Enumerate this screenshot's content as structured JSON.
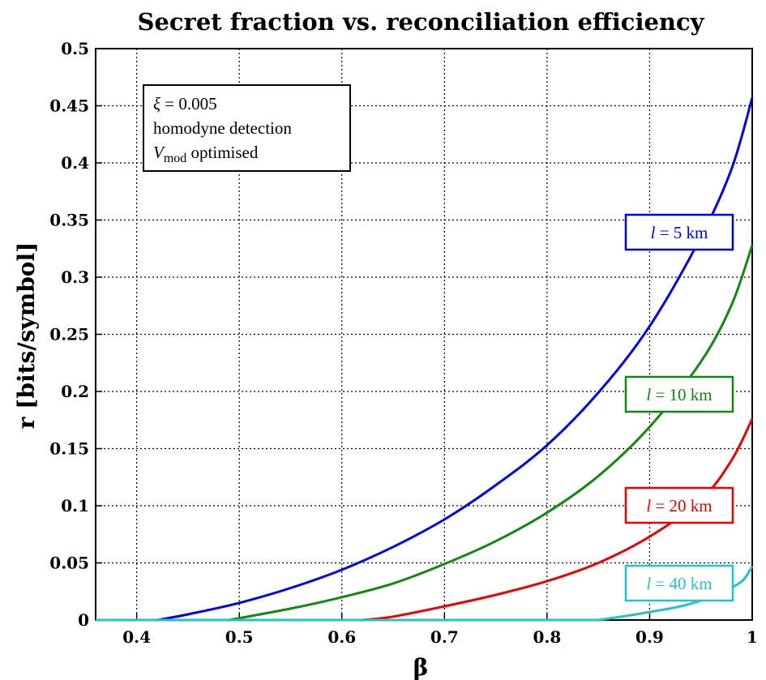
{
  "chart_data": {
    "type": "line",
    "title": "Secret fraction vs. reconciliation efficiency",
    "xlabel": "β",
    "ylabel": "r [bits/symbol]",
    "xlim": [
      0.36,
      1.0
    ],
    "ylim": [
      0,
      0.5
    ],
    "xticks": [
      0.4,
      0.5,
      0.6,
      0.7,
      0.8,
      0.9,
      1.0
    ],
    "xtick_labels": [
      "0.4",
      "0.5",
      "0.6",
      "0.7",
      "0.8",
      "0.9",
      "1"
    ],
    "yticks": [
      0,
      0.05,
      0.1,
      0.15,
      0.2,
      0.25,
      0.3,
      0.35,
      0.4,
      0.45,
      0.5
    ],
    "ytick_labels": [
      "0",
      "0.05",
      "0.1",
      "0.15",
      "0.2",
      "0.25",
      "0.3",
      "0.35",
      "0.4",
      "0.45",
      "0.5"
    ],
    "grid": true,
    "info_box": {
      "line1_symbol": "ξ",
      "line1_rest": " = 0.005",
      "line2": "homodyne detection",
      "line3_var": "V",
      "line3_sub": "mod",
      "line3_rest": " optimised"
    },
    "series": [
      {
        "name_var": "l",
        "name_rest": " = 5 km",
        "color": "#0000ee",
        "x": [
          0.36,
          0.42,
          0.45,
          0.5,
          0.55,
          0.6,
          0.65,
          0.7,
          0.75,
          0.8,
          0.85,
          0.9,
          0.95,
          0.98,
          1.0
        ],
        "y": [
          0,
          0,
          0.005,
          0.015,
          0.028,
          0.044,
          0.064,
          0.088,
          0.118,
          0.153,
          0.199,
          0.257,
          0.335,
          0.395,
          0.457
        ]
      },
      {
        "name_var": "l",
        "name_rest": " = 10 km",
        "color": "#118811",
        "x": [
          0.36,
          0.49,
          0.55,
          0.6,
          0.65,
          0.7,
          0.75,
          0.8,
          0.85,
          0.9,
          0.95,
          0.98,
          1.0
        ],
        "y": [
          0,
          0,
          0.01,
          0.02,
          0.032,
          0.049,
          0.069,
          0.094,
          0.126,
          0.169,
          0.226,
          0.276,
          0.328
        ]
      },
      {
        "name_var": "l",
        "name_rest": " = 20 km",
        "color": "#ee0000",
        "x": [
          0.36,
          0.62,
          0.65,
          0.7,
          0.75,
          0.8,
          0.85,
          0.9,
          0.95,
          0.98,
          1.0
        ],
        "y": [
          0,
          0,
          0.003,
          0.012,
          0.022,
          0.034,
          0.05,
          0.073,
          0.105,
          0.14,
          0.176
        ]
      },
      {
        "name_var": "l",
        "name_rest": " = 40 km",
        "color": "#22c4c4",
        "x": [
          0.36,
          0.85,
          0.88,
          0.9,
          0.93,
          0.95,
          0.97,
          0.99,
          1.0
        ],
        "y": [
          0,
          0,
          0.004,
          0.007,
          0.012,
          0.017,
          0.024,
          0.034,
          0.047
        ]
      }
    ]
  }
}
